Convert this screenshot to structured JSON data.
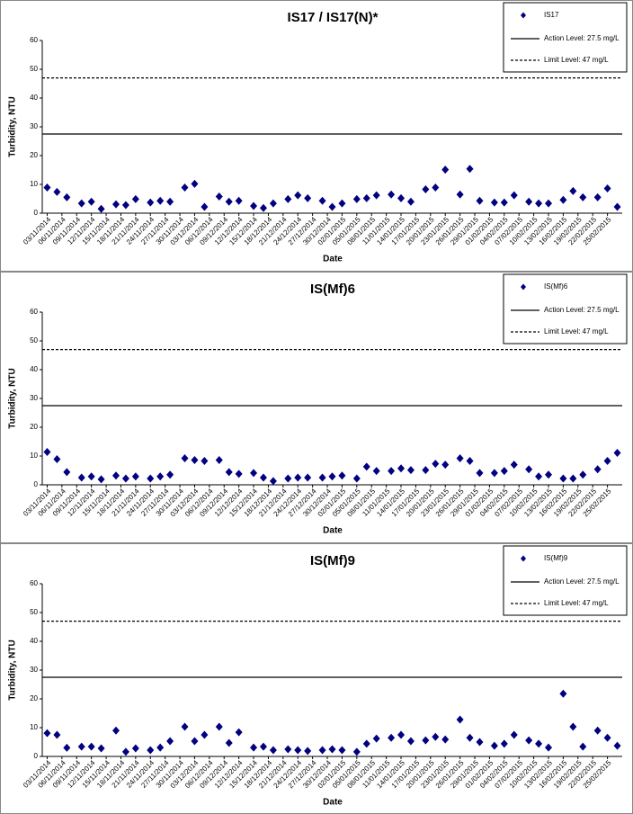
{
  "chart_data": [
    {
      "type": "scatter",
      "title": "IS17 / IS17(N)*",
      "x_label": "Date",
      "y_label": "Turbidity, NTU",
      "x": [
        "03/11/2014",
        "05/11/2014",
        "07/11/2014",
        "10/11/2014",
        "12/11/2014",
        "14/11/2014",
        "17/11/2014",
        "19/11/2014",
        "21/11/2014",
        "24/11/2014",
        "26/11/2014",
        "28/11/2014",
        "01/12/2014",
        "03/12/2014",
        "05/12/2014",
        "08/12/2014",
        "10/12/2014",
        "12/12/2014",
        "15/12/2014",
        "17/12/2014",
        "19/12/2014",
        "22/12/2014",
        "24/12/2014",
        "26/12/2014",
        "29/12/2014",
        "31/12/2014",
        "02/01/2015",
        "05/01/2015",
        "07/01/2015",
        "09/01/2015",
        "12/01/2015",
        "14/01/2015",
        "16/01/2015",
        "19/01/2015",
        "21/01/2015",
        "23/01/2015",
        "26/01/2015",
        "28/01/2015",
        "30/01/2015",
        "02/02/2015",
        "04/02/2015",
        "06/02/2015",
        "09/02/2015",
        "11/02/2015",
        "13/02/2015",
        "16/02/2015",
        "18/02/2015",
        "20/02/2015",
        "23/02/2015",
        "25/02/2015",
        "27/02/2015"
      ],
      "series": [
        {
          "name": "IS17",
          "color": "#000080",
          "values": [
            8.9,
            7.4,
            5.5,
            3.4,
            4,
            1.5,
            3.1,
            2.8,
            4.9,
            3.7,
            4.3,
            4,
            8.9,
            10.2,
            2.2,
            5.8,
            4,
            4.3,
            2.5,
            1.8,
            3.4,
            4.9,
            6.2,
            5.2,
            4.3,
            2.2,
            3.4,
            4.9,
            5.2,
            6.2,
            6.5,
            5.2,
            4,
            8.3,
            8.9,
            15.1,
            6.5,
            15.4,
            4.3,
            3.7,
            3.7,
            6.2,
            4,
            3.4,
            3.4,
            4.6,
            7.7,
            5.5,
            5.5,
            8.6,
            2.2
          ]
        }
      ],
      "hlines": [
        {
          "name": "Action Level: 27.5 mg/L",
          "value": 27.5,
          "style": "solid"
        },
        {
          "name": "Limit Level: 47 mg/L",
          "value": 47,
          "style": "dashed"
        }
      ],
      "xlim": [
        "02/11/2014",
        "28/02/2015"
      ],
      "xticks": [
        "03/11/2014",
        "06/11/2014",
        "09/11/2014",
        "12/11/2014",
        "15/11/2014",
        "18/11/2014",
        "21/11/2014",
        "24/11/2014",
        "27/11/2014",
        "30/11/2014",
        "03/12/2014",
        "06/12/2014",
        "09/12/2014",
        "12/12/2014",
        "15/12/2014",
        "18/12/2014",
        "21/12/2014",
        "24/12/2014",
        "27/12/2014",
        "30/12/2014",
        "02/01/2015",
        "05/01/2015",
        "08/01/2015",
        "11/01/2015",
        "14/01/2015",
        "17/01/2015",
        "20/01/2015",
        "23/01/2015",
        "26/01/2015",
        "29/01/2015",
        "01/02/2015",
        "04/02/2015",
        "07/02/2015",
        "10/02/2015",
        "13/02/2015",
        "16/02/2015",
        "19/02/2015",
        "22/02/2015",
        "25/02/2015"
      ],
      "ylim": [
        0,
        60
      ],
      "yticks": [
        0,
        10,
        20,
        30,
        40,
        50,
        60
      ],
      "legend": "upper right"
    },
    {
      "type": "scatter",
      "title": "IS(Mf)6",
      "x_label": "Date",
      "y_label": "Turbidity, NTU",
      "x": [
        "03/11/2014",
        "05/11/2014",
        "07/11/2014",
        "10/11/2014",
        "12/11/2014",
        "14/11/2014",
        "17/11/2014",
        "19/11/2014",
        "21/11/2014",
        "24/11/2014",
        "26/11/2014",
        "28/11/2014",
        "01/12/2014",
        "03/12/2014",
        "05/12/2014",
        "08/12/2014",
        "10/12/2014",
        "12/12/2014",
        "15/12/2014",
        "17/12/2014",
        "19/12/2014",
        "22/12/2014",
        "24/12/2014",
        "26/12/2014",
        "29/12/2014",
        "31/12/2014",
        "02/01/2015",
        "05/01/2015",
        "07/01/2015",
        "09/01/2015",
        "12/01/2015",
        "14/01/2015",
        "16/01/2015",
        "19/01/2015",
        "21/01/2015",
        "23/01/2015",
        "26/01/2015",
        "28/01/2015",
        "30/01/2015",
        "02/02/2015",
        "04/02/2015",
        "06/02/2015",
        "09/02/2015",
        "11/02/2015",
        "13/02/2015",
        "16/02/2015",
        "18/02/2015",
        "20/02/2015",
        "23/02/2015",
        "25/02/2015",
        "27/02/2015"
      ],
      "series": [
        {
          "name": "IS(Mf)6",
          "color": "#000080",
          "values": [
            11.4,
            8.9,
            4.4,
            2.5,
            2.9,
            1.9,
            3.2,
            2.2,
            2.9,
            2.2,
            2.9,
            3.5,
            9.2,
            8.6,
            8.3,
            8.6,
            4.4,
            3.8,
            4.1,
            2.5,
            1.3,
            2.2,
            2.5,
            2.5,
            2.5,
            2.9,
            3.2,
            2.2,
            6.3,
            4.8,
            4.8,
            5.7,
            5.1,
            5.1,
            7.3,
            7,
            9.2,
            8.3,
            4.1,
            4.1,
            4.8,
            7,
            5.4,
            2.9,
            3.5,
            2.2,
            2.2,
            3.5,
            5.4,
            8.3,
            11.1
          ]
        }
      ],
      "hlines": [
        {
          "name": "Action Level: 27.5 mg/L",
          "value": 27.5,
          "style": "solid"
        },
        {
          "name": "Limit Level: 47 mg/L",
          "value": 47,
          "style": "dashed"
        }
      ],
      "xlim": [
        "02/11/2014",
        "28/02/2015"
      ],
      "xticks": [
        "03/11/2014",
        "06/11/2014",
        "09/11/2014",
        "12/11/2014",
        "15/11/2014",
        "18/11/2014",
        "21/11/2014",
        "24/11/2014",
        "27/11/2014",
        "30/11/2014",
        "03/12/2014",
        "06/12/2014",
        "09/12/2014",
        "12/12/2014",
        "15/12/2014",
        "18/12/2014",
        "21/12/2014",
        "24/12/2014",
        "27/12/2014",
        "30/12/2014",
        "02/01/2015",
        "05/01/2015",
        "08/01/2015",
        "11/01/2015",
        "14/01/2015",
        "17/01/2015",
        "20/01/2015",
        "23/01/2015",
        "26/01/2015",
        "29/01/2015",
        "01/02/2015",
        "04/02/2015",
        "07/02/2015",
        "10/02/2015",
        "13/02/2015",
        "16/02/2015",
        "19/02/2015",
        "22/02/2015",
        "25/02/2015"
      ],
      "ylim": [
        0,
        60
      ],
      "yticks": [
        0,
        10,
        20,
        30,
        40,
        50,
        60
      ],
      "legend": "upper right"
    },
    {
      "type": "scatter",
      "title": "IS(Mf)9",
      "x_label": "Date",
      "y_label": "Turbidity, NTU",
      "x": [
        "03/11/2014",
        "05/11/2014",
        "07/11/2014",
        "10/11/2014",
        "12/11/2014",
        "14/11/2014",
        "17/11/2014",
        "19/11/2014",
        "21/11/2014",
        "24/11/2014",
        "26/11/2014",
        "28/11/2014",
        "01/12/2014",
        "03/12/2014",
        "05/12/2014",
        "08/12/2014",
        "10/12/2014",
        "12/12/2014",
        "15/12/2014",
        "17/12/2014",
        "19/12/2014",
        "22/12/2014",
        "24/12/2014",
        "26/12/2014",
        "29/12/2014",
        "31/12/2014",
        "02/01/2015",
        "05/01/2015",
        "07/01/2015",
        "09/01/2015",
        "12/01/2015",
        "14/01/2015",
        "16/01/2015",
        "19/01/2015",
        "21/01/2015",
        "23/01/2015",
        "26/01/2015",
        "28/01/2015",
        "30/01/2015",
        "02/02/2015",
        "04/02/2015",
        "06/02/2015",
        "09/02/2015",
        "11/02/2015",
        "13/02/2015",
        "16/02/2015",
        "18/02/2015",
        "20/02/2015",
        "23/02/2015",
        "25/02/2015",
        "27/02/2015"
      ],
      "series": [
        {
          "name": "IS(Mf)9",
          "color": "#000080",
          "values": [
            8.1,
            7.5,
            3,
            3.4,
            3.4,
            2.8,
            9,
            1.6,
            2.8,
            2.2,
            3.1,
            5.3,
            10.3,
            5.3,
            7.5,
            10.3,
            4.7,
            8.4,
            3.1,
            3.4,
            2.2,
            2.5,
            2.2,
            1.9,
            2.2,
            2.5,
            2.2,
            1.6,
            4.4,
            6.2,
            6.5,
            7.5,
            5.3,
            5.6,
            6.8,
            5.9,
            12.8,
            6.5,
            5,
            3.7,
            4.4,
            7.5,
            5.6,
            4.4,
            3.1,
            21.8,
            10.3,
            3.4,
            9,
            6.5,
            3.7
          ]
        }
      ],
      "hlines": [
        {
          "name": "Action Level: 27.5 mg/L",
          "value": 27.5,
          "style": "solid"
        },
        {
          "name": "Limit Level: 47 mg/L",
          "value": 47,
          "style": "dashed"
        }
      ],
      "xlim": [
        "02/11/2014",
        "28/02/2015"
      ],
      "xticks": [
        "03/11/2014",
        "06/11/2014",
        "09/11/2014",
        "12/11/2014",
        "15/11/2014",
        "18/11/2014",
        "21/11/2014",
        "24/11/2014",
        "27/11/2014",
        "30/11/2014",
        "03/12/2014",
        "06/12/2014",
        "09/12/2014",
        "12/12/2014",
        "15/12/2014",
        "18/12/2014",
        "21/12/2014",
        "24/12/2014",
        "27/12/2014",
        "30/12/2014",
        "02/01/2015",
        "05/01/2015",
        "08/01/2015",
        "11/01/2015",
        "14/01/2015",
        "17/01/2015",
        "20/01/2015",
        "23/01/2015",
        "26/01/2015",
        "29/01/2015",
        "01/02/2015",
        "04/02/2015",
        "07/02/2015",
        "10/02/2015",
        "13/02/2015",
        "16/02/2015",
        "19/02/2015",
        "22/02/2015",
        "25/02/2015"
      ],
      "ylim": [
        0,
        60
      ],
      "yticks": [
        0,
        10,
        20,
        30,
        40,
        50,
        60
      ],
      "legend": "upper right"
    }
  ]
}
